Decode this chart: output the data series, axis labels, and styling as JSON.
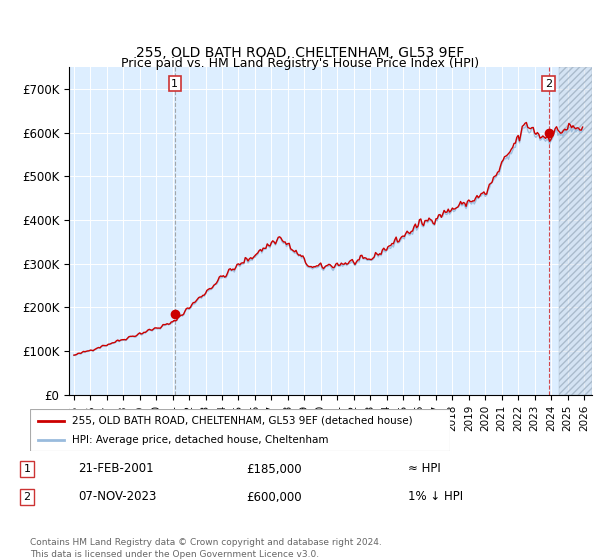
{
  "title": "255, OLD BATH ROAD, CHELTENHAM, GL53 9EF",
  "subtitle": "Price paid vs. HM Land Registry's House Price Index (HPI)",
  "ylim": [
    0,
    750000
  ],
  "yticks": [
    0,
    100000,
    200000,
    300000,
    400000,
    500000,
    600000,
    700000
  ],
  "ytick_labels": [
    "£0",
    "£100K",
    "£200K",
    "£300K",
    "£400K",
    "£500K",
    "£600K",
    "£700K"
  ],
  "xlim_start": 1994.7,
  "xlim_end": 2026.5,
  "background_color": "#ffffff",
  "plot_bg_color": "#ddeeff",
  "grid_color": "#ffffff",
  "sale1_x": 2001.13,
  "sale1_y": 185000,
  "sale2_x": 2023.85,
  "sale2_y": 600000,
  "red_line_color": "#cc0000",
  "blue_line_color": "#99bbdd",
  "hatch_start": 2024.5,
  "legend1_text": "255, OLD BATH ROAD, CHELTENHAM, GL53 9EF (detached house)",
  "legend2_text": "HPI: Average price, detached house, Cheltenham",
  "note1_label": "1",
  "note1_date": "21-FEB-2001",
  "note1_price": "£185,000",
  "note1_hpi": "≈ HPI",
  "note2_label": "2",
  "note2_date": "07-NOV-2023",
  "note2_price": "£600,000",
  "note2_hpi": "1% ↓ HPI",
  "footer": "Contains HM Land Registry data © Crown copyright and database right 2024.\nThis data is licensed under the Open Government Licence v3.0."
}
